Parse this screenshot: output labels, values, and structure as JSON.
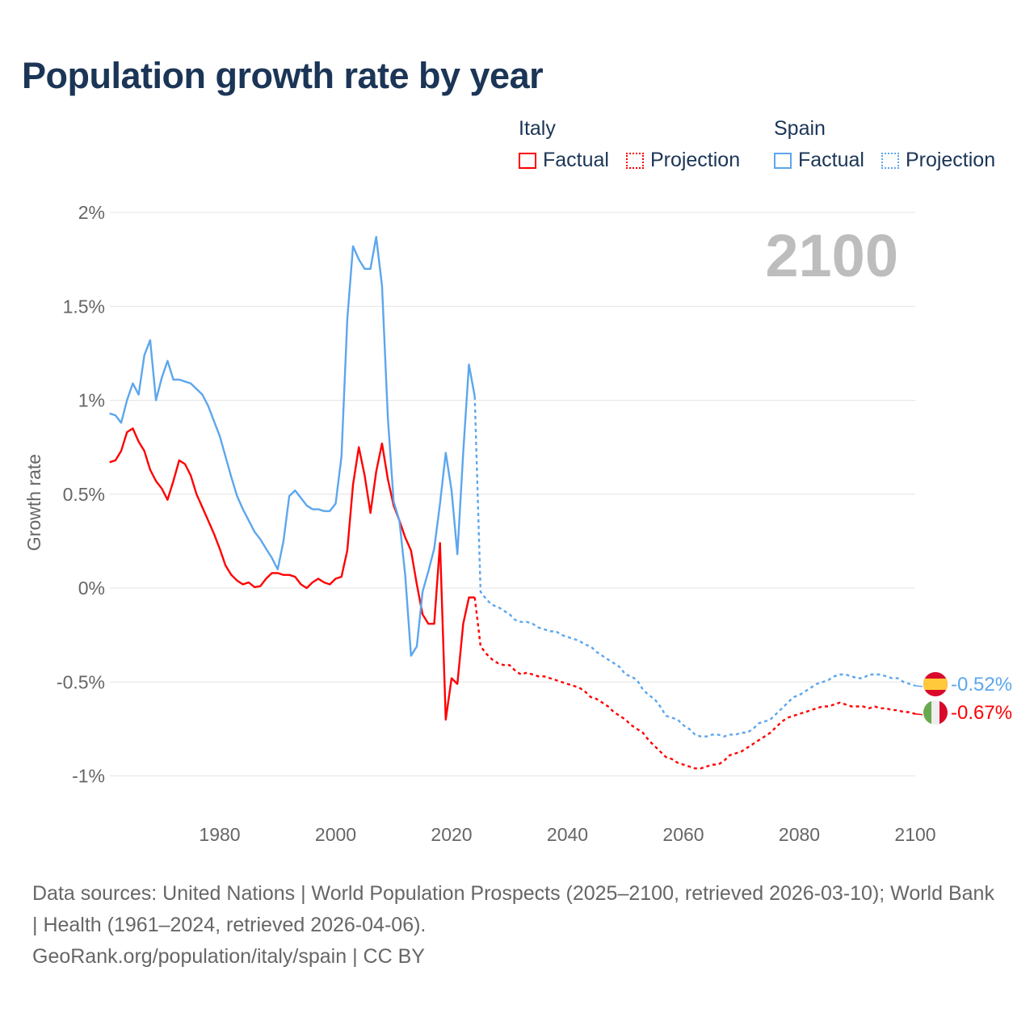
{
  "chart_data": {
    "type": "line",
    "title": "Population growth rate by year",
    "ylabel": "Growth rate",
    "xlabel": "",
    "xlim": [
      1961,
      2100
    ],
    "ylim": [
      -1.15,
      2.05
    ],
    "y_ticks": [
      {
        "v": 2,
        "label": "2%"
      },
      {
        "v": 1.5,
        "label": "1.5%"
      },
      {
        "v": 1,
        "label": "1%"
      },
      {
        "v": 0.5,
        "label": "0.5%"
      },
      {
        "v": 0,
        "label": "0%"
      },
      {
        "v": -0.5,
        "label": "-0.5%"
      },
      {
        "v": -1,
        "label": "-1%"
      }
    ],
    "x_ticks": [
      {
        "v": 1980,
        "label": "1980"
      },
      {
        "v": 2000,
        "label": "2000"
      },
      {
        "v": 2020,
        "label": "2020"
      },
      {
        "v": 2040,
        "label": "2040"
      },
      {
        "v": 2060,
        "label": "2060"
      },
      {
        "v": 2080,
        "label": "2080"
      },
      {
        "v": 2100,
        "label": "2100"
      }
    ],
    "grid": true,
    "year_watermark": "2100",
    "legend": {
      "placement": "top-right",
      "groups": [
        {
          "name": "Italy",
          "factual": "Factual",
          "projection": "Projection",
          "color": "#ff0000"
        },
        {
          "name": "Spain",
          "factual": "Factual",
          "projection": "Projection",
          "color": "#5ca6ed"
        }
      ]
    },
    "series": [
      {
        "name": "Italy",
        "kind": "Factual",
        "color": "#ff0000",
        "start_year": 1961,
        "values": [
          0.67,
          0.68,
          0.73,
          0.83,
          0.85,
          0.78,
          0.73,
          0.63,
          0.57,
          0.53,
          0.47,
          0.57,
          0.68,
          0.66,
          0.6,
          0.5,
          0.43,
          0.36,
          0.29,
          0.21,
          0.12,
          0.07,
          0.04,
          0.02,
          0.03,
          0.005,
          0.01,
          0.05,
          0.08,
          0.08,
          0.07,
          0.07,
          0.06,
          0.02,
          0.0,
          0.03,
          0.05,
          0.03,
          0.02,
          0.05,
          0.06,
          0.2,
          0.55,
          0.75,
          0.6,
          0.4,
          0.62,
          0.77,
          0.58,
          0.44,
          0.36,
          0.27,
          0.2,
          0.02,
          -0.14,
          -0.19,
          -0.19,
          0.24,
          -0.7,
          -0.48,
          -0.51,
          -0.19,
          -0.05,
          -0.05
        ]
      },
      {
        "name": "Italy",
        "kind": "Projection",
        "color": "#ff0000",
        "start_year": 2024,
        "values": [
          -0.05,
          -0.31,
          -0.35,
          -0.38,
          -0.4,
          -0.41,
          -0.41,
          -0.44,
          -0.46,
          -0.45,
          -0.46,
          -0.47,
          -0.47,
          -0.48,
          -0.49,
          -0.5,
          -0.51,
          -0.52,
          -0.53,
          -0.55,
          -0.58,
          -0.59,
          -0.61,
          -0.63,
          -0.66,
          -0.68,
          -0.7,
          -0.73,
          -0.75,
          -0.77,
          -0.81,
          -0.84,
          -0.87,
          -0.9,
          -0.91,
          -0.93,
          -0.94,
          -0.95,
          -0.96,
          -0.96,
          -0.95,
          -0.94,
          -0.94,
          -0.92,
          -0.89,
          -0.88,
          -0.87,
          -0.85,
          -0.83,
          -0.81,
          -0.79,
          -0.77,
          -0.74,
          -0.71,
          -0.69,
          -0.68,
          -0.67,
          -0.66,
          -0.65,
          -0.64,
          -0.63,
          -0.63,
          -0.62,
          -0.61,
          -0.62,
          -0.63,
          -0.63,
          -0.63,
          -0.64,
          -0.63,
          -0.64,
          -0.64,
          -0.65,
          -0.65,
          -0.66,
          -0.66,
          -0.67
        ]
      },
      {
        "name": "Spain",
        "kind": "Factual",
        "color": "#5ca6ed",
        "start_year": 1961,
        "values": [
          0.93,
          0.92,
          0.88,
          1.0,
          1.09,
          1.03,
          1.24,
          1.32,
          1.0,
          1.12,
          1.21,
          1.11,
          1.11,
          1.1,
          1.09,
          1.06,
          1.03,
          0.97,
          0.89,
          0.81,
          0.7,
          0.59,
          0.49,
          0.42,
          0.36,
          0.3,
          0.26,
          0.21,
          0.16,
          0.1,
          0.25,
          0.49,
          0.52,
          0.48,
          0.44,
          0.42,
          0.42,
          0.41,
          0.41,
          0.45,
          0.7,
          1.43,
          1.82,
          1.75,
          1.7,
          1.7,
          1.87,
          1.61,
          0.91,
          0.46,
          0.36,
          0.07,
          -0.36,
          -0.31,
          -0.02,
          0.09,
          0.21,
          0.45,
          0.72,
          0.52,
          0.18,
          0.72,
          1.19,
          1.02
        ]
      },
      {
        "name": "Spain",
        "kind": "Projection",
        "color": "#5ca6ed",
        "start_year": 2024,
        "values": [
          1.02,
          -0.02,
          -0.06,
          -0.09,
          -0.1,
          -0.12,
          -0.14,
          -0.17,
          -0.18,
          -0.18,
          -0.19,
          -0.21,
          -0.22,
          -0.23,
          -0.23,
          -0.25,
          -0.26,
          -0.27,
          -0.28,
          -0.3,
          -0.31,
          -0.34,
          -0.36,
          -0.38,
          -0.4,
          -0.42,
          -0.46,
          -0.47,
          -0.49,
          -0.54,
          -0.57,
          -0.59,
          -0.63,
          -0.68,
          -0.69,
          -0.7,
          -0.73,
          -0.75,
          -0.78,
          -0.79,
          -0.79,
          -0.78,
          -0.78,
          -0.79,
          -0.78,
          -0.78,
          -0.77,
          -0.77,
          -0.75,
          -0.72,
          -0.71,
          -0.7,
          -0.67,
          -0.64,
          -0.61,
          -0.58,
          -0.57,
          -0.55,
          -0.53,
          -0.51,
          -0.5,
          -0.49,
          -0.47,
          -0.46,
          -0.46,
          -0.47,
          -0.48,
          -0.48,
          -0.46,
          -0.46,
          -0.46,
          -0.47,
          -0.48,
          -0.48,
          -0.5,
          -0.51,
          -0.52
        ]
      }
    ],
    "end_labels": [
      {
        "name": "Spain",
        "label": "-0.52%",
        "value": -0.52,
        "color": "#5ca6ed",
        "flag": "spain-flag"
      },
      {
        "name": "Italy",
        "label": "-0.67%",
        "value": -0.67,
        "color": "#ff0000",
        "flag": "italy-flag"
      }
    ]
  },
  "footer": {
    "sources": "Data sources: United Nations | World Population Prospects (2025–2100, retrieved 2026-03-10); World Bank | Health (1961–2024, retrieved 2026-04-06).",
    "credit": "GeoRank.org/population/italy/spain | CC BY"
  }
}
